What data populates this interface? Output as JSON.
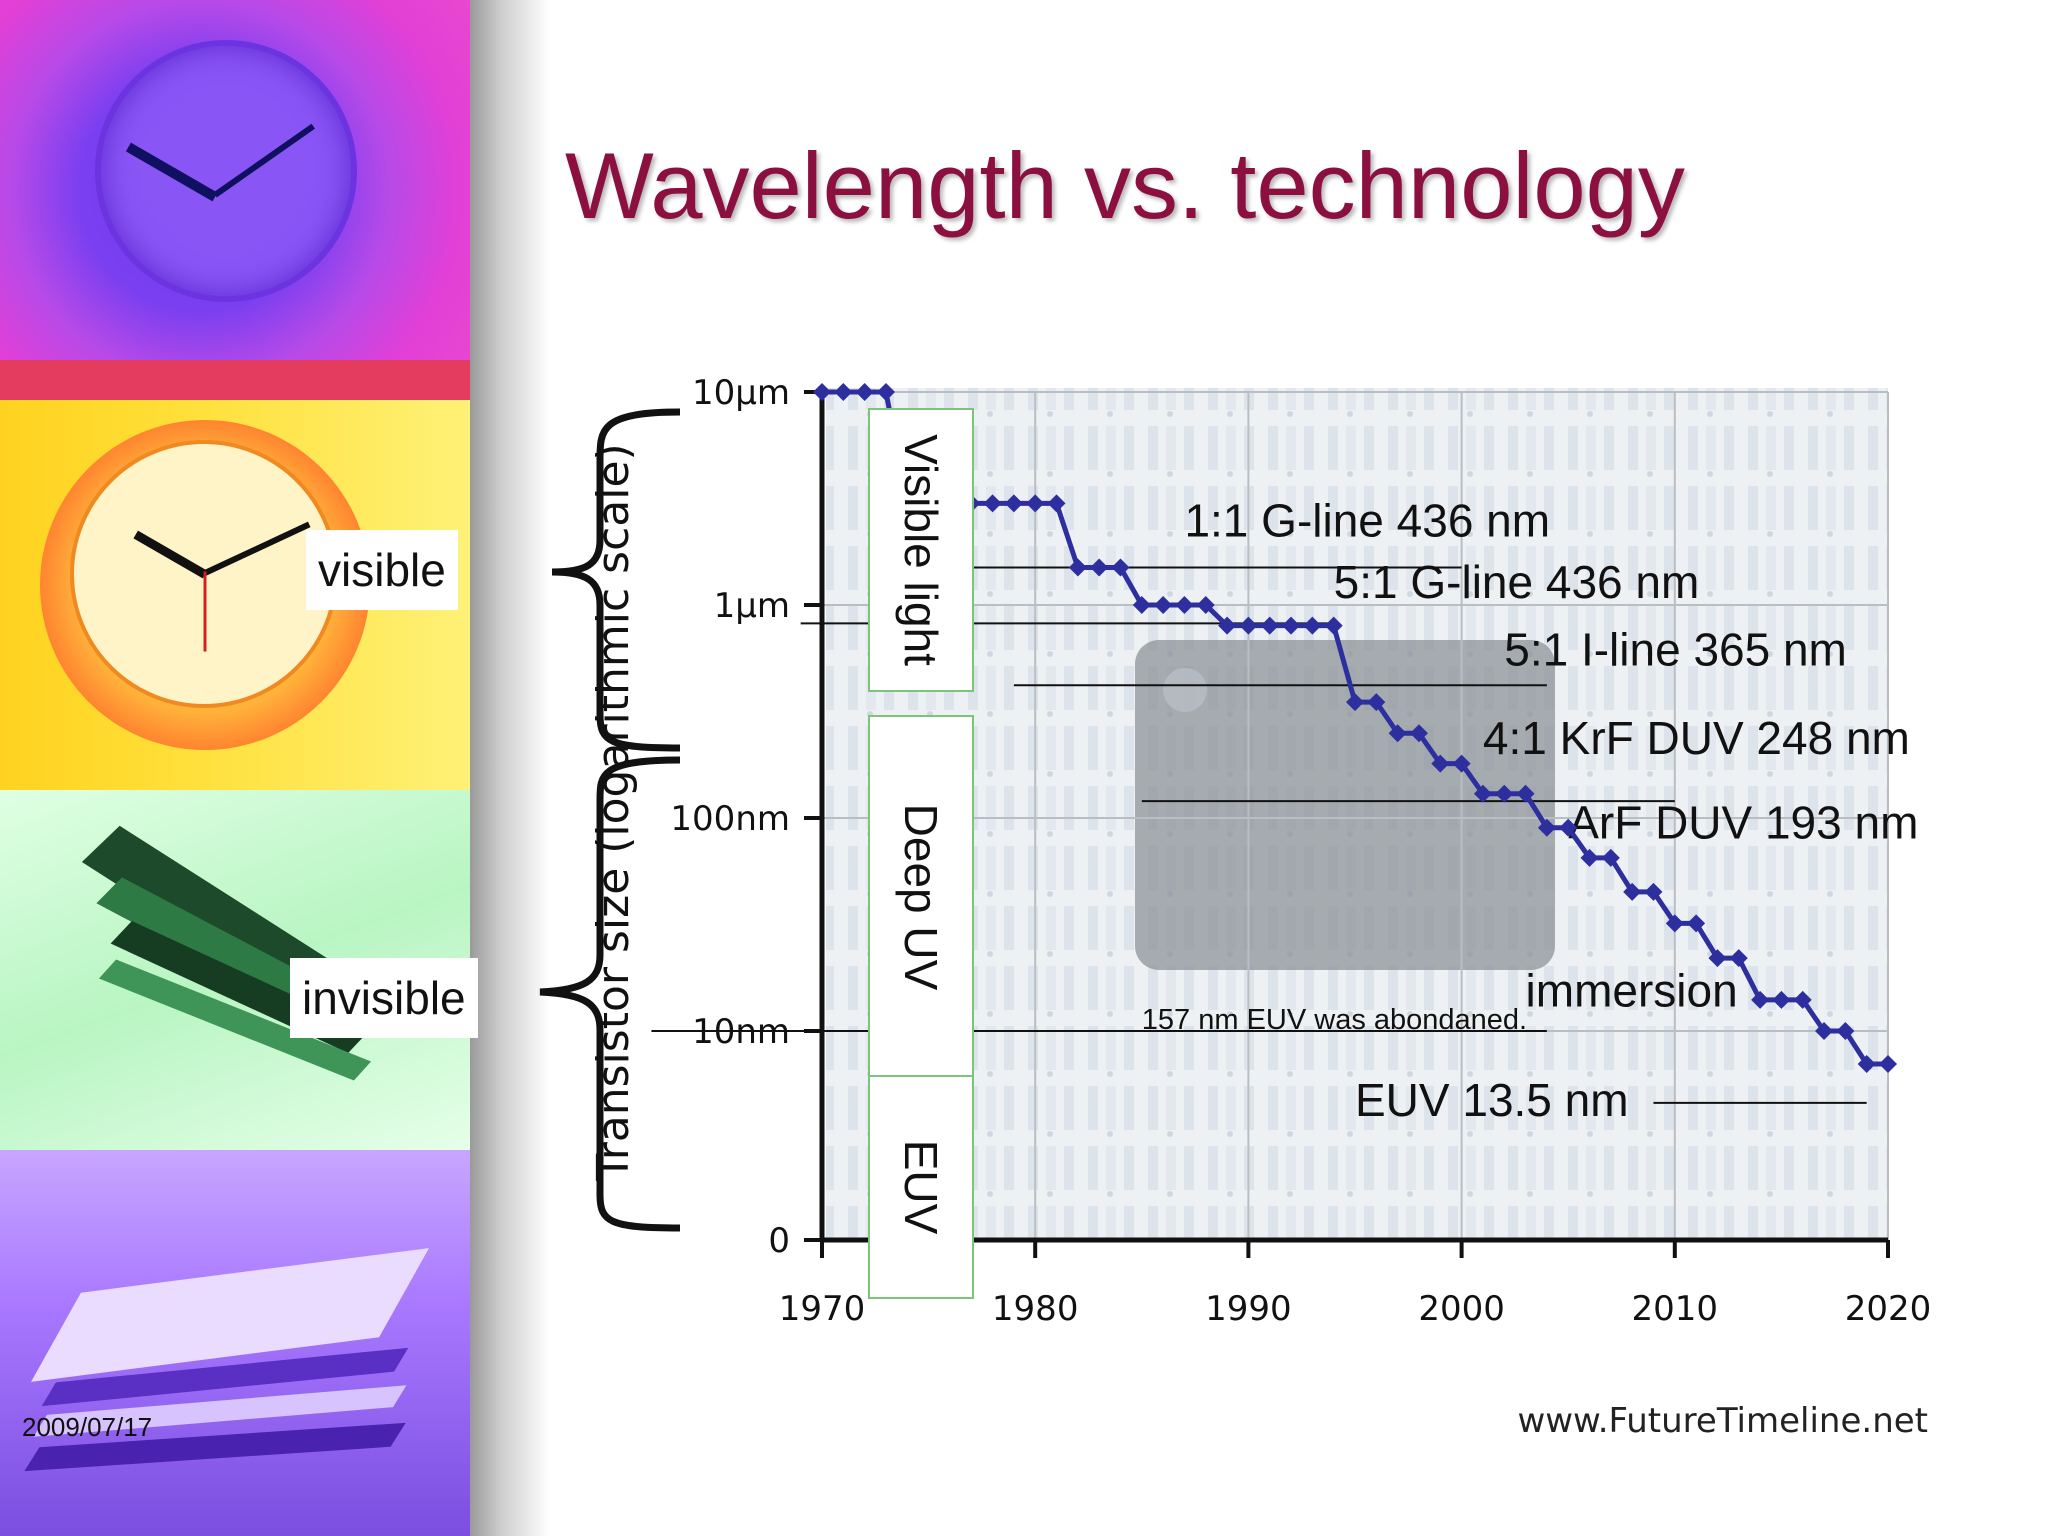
{
  "slide": {
    "title": "Wavelength vs. technology",
    "date": "2009/07/17",
    "source": "www.FutureTimeline.net",
    "side_labels": {
      "visible": "visible",
      "invisible": "invisible"
    }
  },
  "bands": [
    "Visible light",
    "Deep UV",
    "EUV"
  ],
  "colors": {
    "title": "#8b1040",
    "series": "#2e2f9e",
    "band_border": "#7cc47a"
  },
  "chart_data": {
    "type": "line",
    "ylabel": "Transistor size (logarithmic scale)",
    "xlabel": "",
    "x_ticks": [
      "1970",
      "1980",
      "1990",
      "2000",
      "2010",
      "2020"
    ],
    "y_ticks": [
      "10µm",
      "1µm",
      "100nm",
      "10nm",
      "0"
    ],
    "xlim": [
      1970,
      2020
    ],
    "y_scale": "log",
    "grid": true,
    "series": [
      {
        "x": [
          1970,
          1971,
          1972,
          1973,
          1974,
          1975,
          1976,
          1977,
          1978,
          1979,
          1980,
          1981,
          1982,
          1983,
          1984,
          1985,
          1986,
          1987,
          1988,
          1989,
          1990,
          1991,
          1992,
          1993,
          1994,
          1995,
          1996,
          1997,
          1998,
          1999,
          2000,
          2001,
          2002,
          2003,
          2004,
          2005,
          2006,
          2007,
          2008,
          2009,
          2010,
          2011,
          2012,
          2013,
          2014,
          2015,
          2016,
          2017,
          2018,
          2019,
          2020
        ],
        "y_nm": [
          10000,
          10000,
          10000,
          10000,
          3000,
          3000,
          3000,
          3000,
          3000,
          3000,
          3000,
          3000,
          1500,
          1500,
          1500,
          1000,
          1000,
          1000,
          1000,
          800,
          800,
          800,
          800,
          800,
          800,
          350,
          350,
          250,
          250,
          180,
          180,
          130,
          130,
          130,
          90,
          90,
          65,
          65,
          45,
          45,
          32,
          32,
          22,
          22,
          14,
          14,
          14,
          10,
          10,
          7,
          7
        ]
      }
    ],
    "annotations": [
      "1:1 G-line 436 nm",
      "5:1 G-line 436 nm",
      "5:1 I-line 365 nm",
      "4:1 KrF DUV 248 nm",
      "ArF DUV 193 nm",
      "immersion",
      "157 nm EUV was abondaned.",
      "EUV 13.5 nm"
    ]
  }
}
